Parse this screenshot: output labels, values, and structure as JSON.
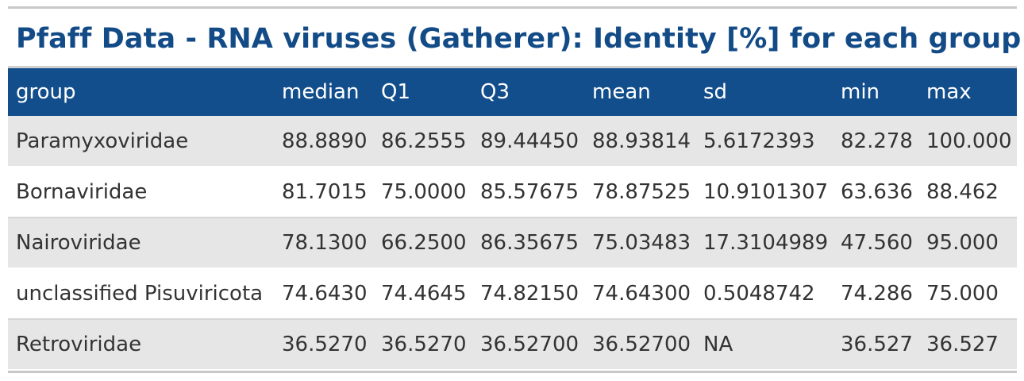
{
  "chart_data": {
    "type": "table",
    "title": "Pfaff Data - RNA viruses (Gatherer): Identity [%] for each group",
    "columns": [
      "group",
      "median",
      "Q1",
      "Q3",
      "mean",
      "sd",
      "min",
      "max"
    ],
    "rows": [
      [
        "Paramyxoviridae",
        "88.8890",
        "86.2555",
        "89.44450",
        "88.93814",
        "5.6172393",
        "82.278",
        "100.000"
      ],
      [
        "Bornaviridae",
        "81.7015",
        "75.0000",
        "85.57675",
        "78.87525",
        "10.9101307",
        "63.636",
        "88.462"
      ],
      [
        "Nairoviridae",
        "78.1300",
        "66.2500",
        "86.35675",
        "75.03483",
        "17.3104989",
        "47.560",
        "95.000"
      ],
      [
        "unclassified Pisuviricota",
        "74.6430",
        "74.4645",
        "74.82150",
        "74.64300",
        "0.5048742",
        "74.286",
        "75.000"
      ],
      [
        "Retroviridae",
        "36.5270",
        "36.5270",
        "36.52700",
        "36.52700",
        "NA",
        "36.527",
        "36.527"
      ]
    ]
  },
  "colors": {
    "title": "#134b87",
    "header_bg": "#134e8c",
    "header_text": "#ffffff",
    "row_stripe": "#e6e6e6",
    "cell_text": "#333333"
  }
}
